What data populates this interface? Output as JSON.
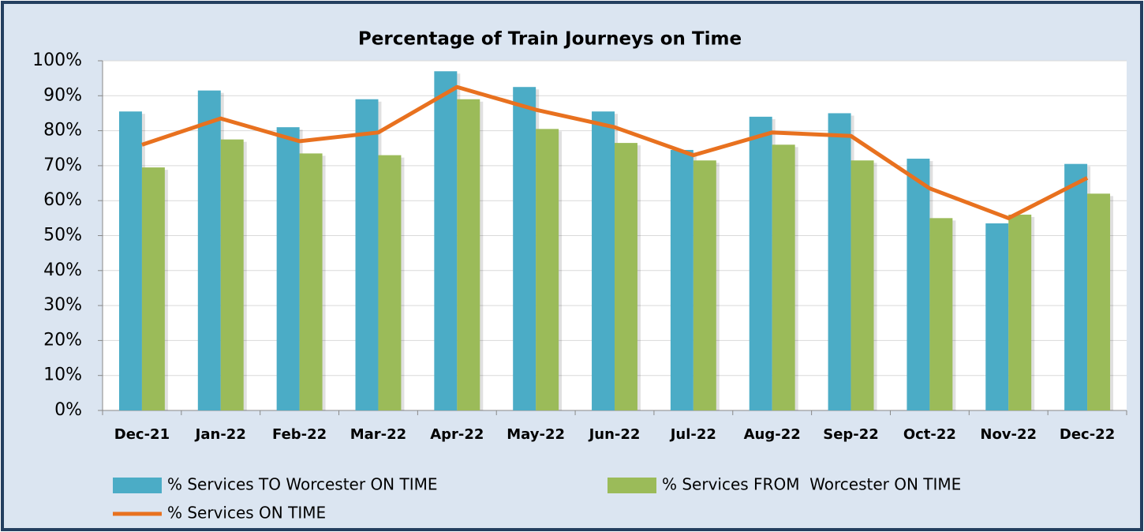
{
  "chart_data": {
    "type": "bar",
    "title": "Percentage of Train Journeys on Time",
    "categories": [
      "Dec-21",
      "Jan-22",
      "Feb-22",
      "Mar-22",
      "Apr-22",
      "May-22",
      "Jun-22",
      "Jul-22",
      "Aug-22",
      "Sep-22",
      "Oct-22",
      "Nov-22",
      "Dec-22"
    ],
    "series": [
      {
        "name": "% Services TO Worcester ON TIME",
        "type": "bar",
        "color": "#4bacc6",
        "values": [
          85.5,
          91.5,
          81,
          89,
          97,
          92.5,
          85.5,
          74.5,
          84,
          85,
          72,
          53.5,
          70.5
        ]
      },
      {
        "name": "% Services FROM  Worcester ON TIME",
        "type": "bar",
        "color": "#9bbb59",
        "values": [
          69.5,
          77.5,
          73.5,
          73,
          89,
          80.5,
          76.5,
          71.5,
          76,
          71.5,
          55,
          56,
          62
        ]
      },
      {
        "name": "% Services ON TIME",
        "type": "line",
        "color": "#e8711f",
        "values": [
          76,
          83.5,
          77,
          79.5,
          92.5,
          86,
          81,
          73,
          79.5,
          78.5,
          63.5,
          55,
          66.5
        ]
      }
    ],
    "ylim": [
      0,
      100
    ],
    "yticks": [
      {
        "value": 0,
        "label": "0%"
      },
      {
        "value": 10,
        "label": "10%"
      },
      {
        "value": 20,
        "label": "20%"
      },
      {
        "value": 30,
        "label": "30%"
      },
      {
        "value": 40,
        "label": "40%"
      },
      {
        "value": 50,
        "label": "50%"
      },
      {
        "value": 60,
        "label": "60%"
      },
      {
        "value": 70,
        "label": "70%"
      },
      {
        "value": 80,
        "label": "80%"
      },
      {
        "value": 90,
        "label": "90%"
      },
      {
        "value": 100,
        "label": "100%"
      }
    ],
    "grid": true,
    "legend": "bottom"
  }
}
